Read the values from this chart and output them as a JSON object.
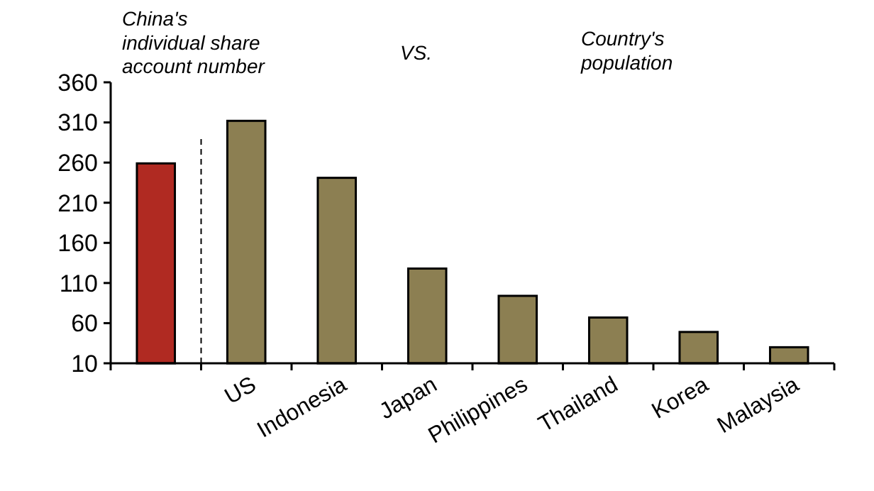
{
  "chart_data": {
    "type": "bar",
    "categories": [
      null,
      "US",
      "Indonesia",
      "Japan",
      "Philippines",
      "Thailand",
      "Korea",
      "Malaysia"
    ],
    "values": [
      259,
      312,
      241,
      128,
      94,
      67,
      49,
      30
    ],
    "colors": [
      "#b02a22",
      "#8c7f52",
      "#8c7f52",
      "#8c7f52",
      "#8c7f52",
      "#8c7f52",
      "#8c7f52",
      "#8c7f52"
    ],
    "ylim": [
      10,
      360
    ],
    "yticks": [
      10,
      60,
      110,
      160,
      210,
      260,
      310,
      360
    ],
    "grid": false,
    "annotations": [
      "China's individual share account number",
      "VS.",
      "Country's population"
    ]
  }
}
